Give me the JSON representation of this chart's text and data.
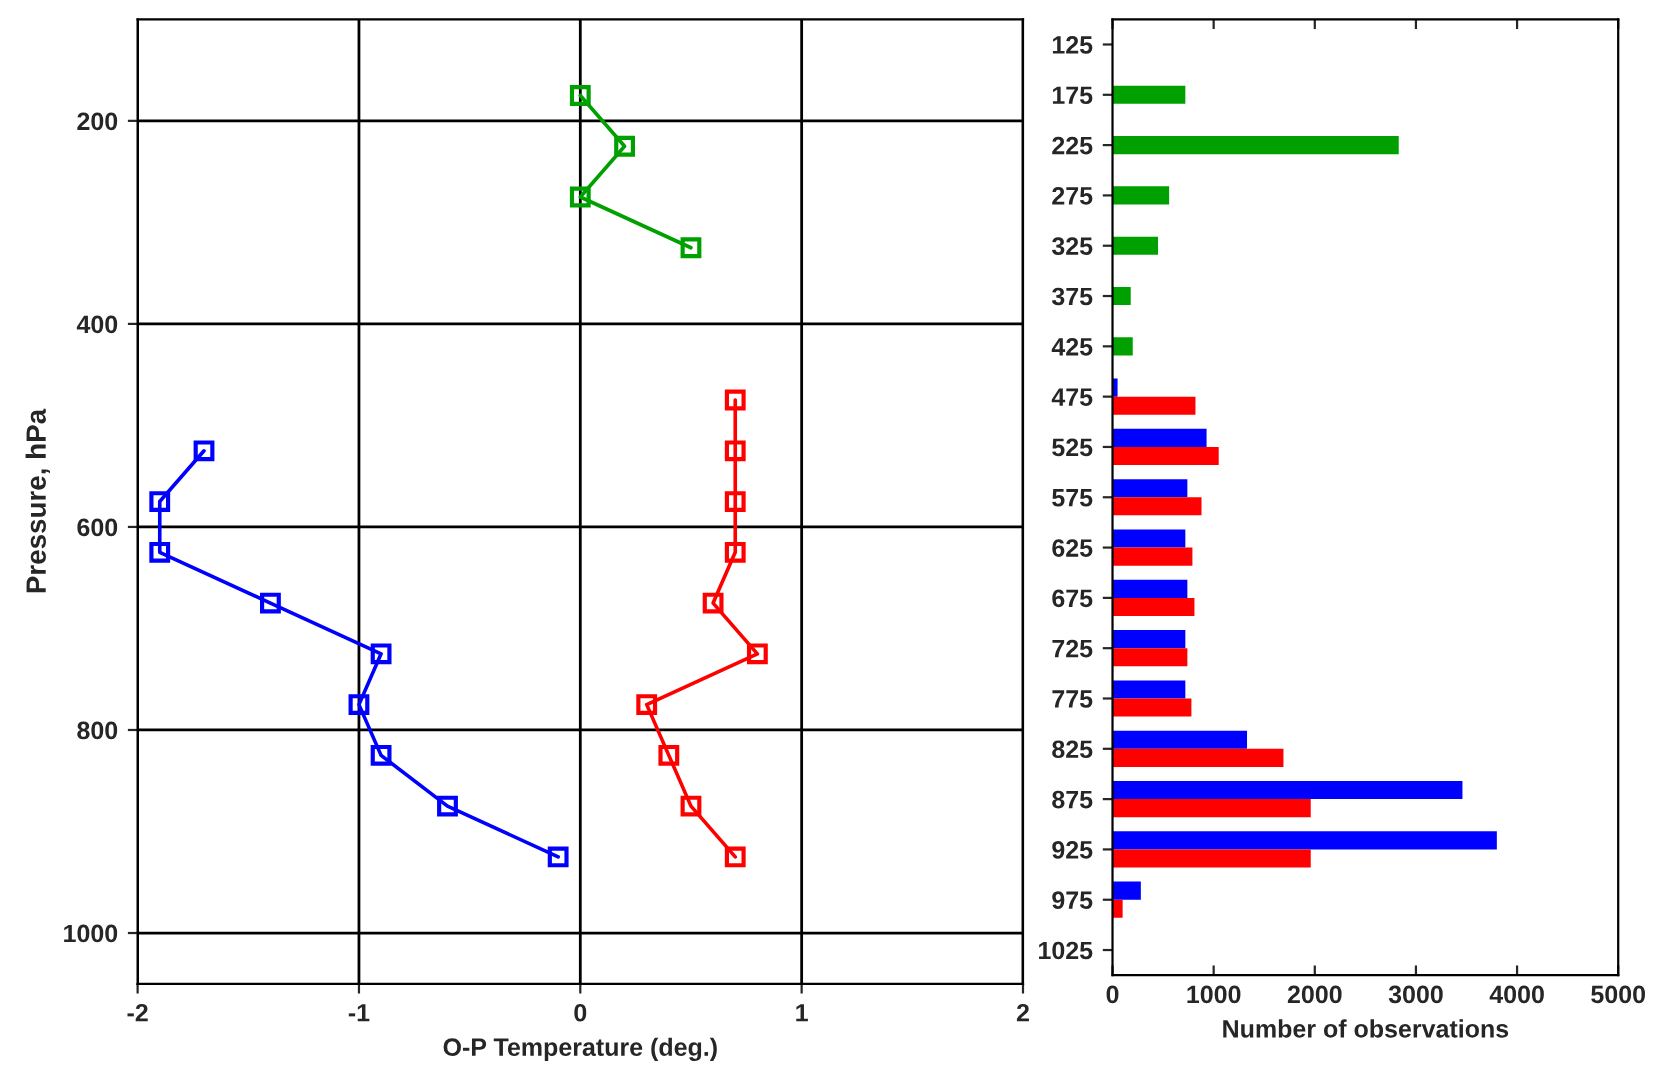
{
  "chart_data": [
    {
      "type": "line",
      "xlabel": "O-P Temperature (deg.)",
      "ylabel": "Pressure, hPa",
      "xlim": [
        -2,
        2
      ],
      "xticks": [
        -2,
        -1,
        0,
        1,
        2
      ],
      "ylim": [
        1050,
        100
      ],
      "yticks": [
        200,
        400,
        600,
        800,
        1000
      ],
      "grid": true,
      "marker": "square",
      "line_style": "solid",
      "series": [
        {
          "color": "#00a000",
          "x": [
            0,
            0.2,
            0,
            0.5
          ],
          "values": [
            175,
            225,
            275,
            325
          ]
        },
        {
          "color": "#0000ff",
          "x": [
            -1.7,
            -1.9,
            -1.9,
            -1.4,
            -0.9,
            -1.0,
            -0.9,
            -0.6,
            -0.1
          ],
          "values": [
            525,
            575,
            625,
            675,
            725,
            775,
            825,
            875,
            925
          ]
        },
        {
          "color": "#ff0000",
          "x": [
            0.7,
            0.7,
            0.7,
            0.7,
            0.6,
            0.8,
            0.3,
            0.4,
            0.5,
            0.7
          ],
          "values": [
            475,
            525,
            575,
            625,
            675,
            725,
            775,
            825,
            875,
            925
          ]
        }
      ]
    },
    {
      "type": "bar",
      "orientation": "horizontal",
      "xlabel": "Number of observations",
      "xlim": [
        0,
        5000
      ],
      "xticks": [
        0,
        1000,
        2000,
        3000,
        4000,
        5000
      ],
      "grid": false,
      "categories": [
        "125",
        "175",
        "225",
        "275",
        "325",
        "375",
        "425",
        "475",
        "525",
        "575",
        "625",
        "675",
        "725",
        "775",
        "825",
        "875",
        "925",
        "975",
        "1025"
      ],
      "series": [
        {
          "color": "#00a000",
          "values": [
            null,
            720,
            2830,
            560,
            450,
            180,
            200,
            null,
            null,
            null,
            null,
            null,
            null,
            null,
            null,
            null,
            null,
            null,
            null
          ]
        },
        {
          "color": "#0000ff",
          "values": [
            null,
            null,
            null,
            null,
            null,
            null,
            null,
            50,
            930,
            740,
            720,
            740,
            720,
            720,
            1330,
            3460,
            3800,
            280,
            null
          ]
        },
        {
          "color": "#ff0000",
          "values": [
            null,
            null,
            null,
            null,
            null,
            null,
            null,
            820,
            1050,
            880,
            790,
            810,
            740,
            780,
            1690,
            1960,
            1960,
            100,
            null
          ]
        }
      ]
    }
  ]
}
